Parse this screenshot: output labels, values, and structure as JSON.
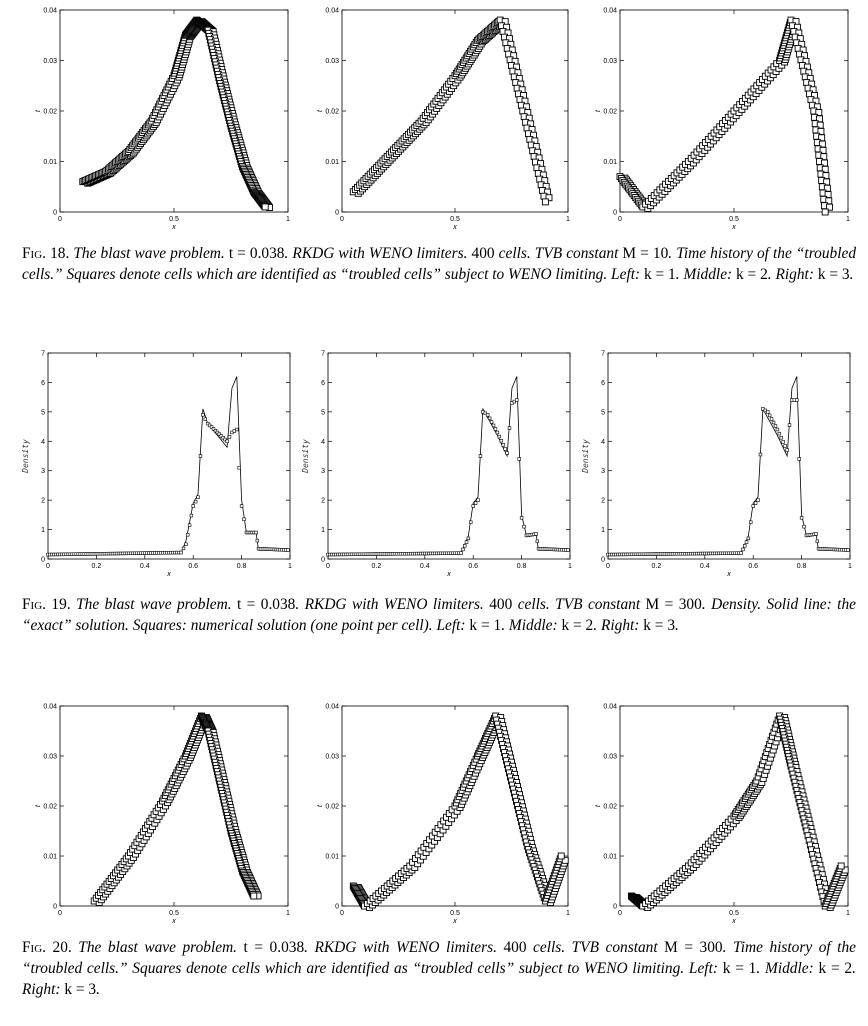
{
  "figures": [
    {
      "id": "fig18",
      "caption": {
        "number": "Fig. 18.",
        "segments": [
          {
            "t": "The blast wave problem. ",
            "i": true
          },
          {
            "t": "t = 0.038",
            "i": false
          },
          {
            "t": ". RKDG with WENO limiters. ",
            "i": true
          },
          {
            "t": "400",
            "i": false
          },
          {
            "t": " cells. TVB constant ",
            "i": true
          },
          {
            "t": "M = 10",
            "i": false
          },
          {
            "t": ". Time history of the “troubled cells.” Squares denote cells which are identified as “troubled cells” subject to WENO limiting. Left: ",
            "i": true
          },
          {
            "t": "k = 1",
            "i": false
          },
          {
            "t": ". Middle: ",
            "i": true
          },
          {
            "t": "k = 2",
            "i": false
          },
          {
            "t": ". Right: ",
            "i": true
          },
          {
            "t": "k = 3",
            "i": false
          },
          {
            "t": ".",
            "i": true
          }
        ]
      },
      "panels": [
        {
          "name": "k1",
          "chart_data": {
            "type": "scatter",
            "xlabel": "x",
            "ylabel": "t",
            "xlim": [
              0,
              1
            ],
            "ylim": [
              0,
              0.04
            ],
            "xticks": [
              "0",
              "0.5",
              "1"
            ],
            "yticks": [
              "0",
              "0.01",
              "0.02",
              "0.03",
              "0.04"
            ],
            "series": [
              {
                "x": [
                  0.1,
                  0.2,
                  0.3,
                  0.4,
                  0.5,
                  0.55,
                  0.6,
                  0.65,
                  0.7,
                  0.75,
                  0.8,
                  0.85,
                  0.9
                ],
                "y": [
                  0.006,
                  0.008,
                  0.012,
                  0.018,
                  0.027,
                  0.035,
                  0.038,
                  0.036,
                  0.026,
                  0.017,
                  0.009,
                  0.004,
                  0.001
                ]
              }
            ]
          }
        },
        {
          "name": "k2",
          "chart_data": {
            "type": "scatter",
            "xlabel": "x",
            "ylabel": "t",
            "xlim": [
              0,
              1
            ],
            "ylim": [
              0,
              0.04
            ],
            "xticks": [
              "0",
              "0.5",
              "1"
            ],
            "yticks": [
              "0",
              "0.01",
              "0.02",
              "0.03",
              "0.04"
            ],
            "series": [
              {
                "x": [
                  0.05,
                  0.2,
                  0.35,
                  0.5,
                  0.6,
                  0.7,
                  0.8,
                  0.9
                ],
                "y": [
                  0.004,
                  0.011,
                  0.018,
                  0.027,
                  0.034,
                  0.038,
                  0.02,
                  0.002
                ]
              }
            ]
          }
        },
        {
          "name": "k3",
          "chart_data": {
            "type": "scatter",
            "xlabel": "x",
            "ylabel": "t",
            "xlim": [
              0,
              1
            ],
            "ylim": [
              0,
              0.04
            ],
            "xticks": [
              "0",
              "0.5",
              "1"
            ],
            "yticks": [
              "0",
              "0.01",
              "0.02",
              "0.03",
              "0.04"
            ],
            "series": [
              {
                "x": [
                  0.0,
                  0.1,
                  0.3,
                  0.5,
                  0.7,
                  0.75,
                  0.85,
                  0.9
                ],
                "y": [
                  0.007,
                  0.001,
                  0.01,
                  0.02,
                  0.03,
                  0.038,
                  0.02,
                  0.0
                ]
              }
            ]
          }
        }
      ]
    },
    {
      "id": "fig19",
      "caption": {
        "number": "Fig. 19.",
        "segments": [
          {
            "t": "The blast wave problem. ",
            "i": true
          },
          {
            "t": "t = 0.038",
            "i": false
          },
          {
            "t": ". RKDG with WENO limiters. ",
            "i": true
          },
          {
            "t": "400",
            "i": false
          },
          {
            "t": " cells. TVB constant ",
            "i": true
          },
          {
            "t": "M = 300",
            "i": false
          },
          {
            "t": ". Density. Solid line: the “exact” solution. Squares: numerical solution (one point per cell). Left: ",
            "i": true
          },
          {
            "t": "k = 1",
            "i": false
          },
          {
            "t": ". Middle: ",
            "i": true
          },
          {
            "t": "k = 2",
            "i": false
          },
          {
            "t": ". Right: ",
            "i": true
          },
          {
            "t": "k = 3",
            "i": false
          },
          {
            "t": ".",
            "i": true
          }
        ]
      },
      "panels": [
        {
          "name": "k1",
          "chart_data": {
            "type": "line",
            "xlabel": "x",
            "ylabel": "Density",
            "xlim": [
              0,
              1
            ],
            "ylim": [
              0,
              7
            ],
            "xticks": [
              "0",
              "0.2",
              "0.4",
              "0.6",
              "0.8",
              "1"
            ],
            "yticks": [
              "0",
              "1",
              "2",
              "3",
              "4",
              "5",
              "6",
              "7"
            ],
            "series": [
              {
                "x": [
                  0,
                  0.55,
                  0.57,
                  0.6,
                  0.62,
                  0.64,
                  0.66,
                  0.7,
                  0.74,
                  0.76,
                  0.78,
                  0.8,
                  0.82,
                  0.86,
                  0.87,
                  1
                ],
                "y": [
                  0.15,
                  0.22,
                  0.6,
                  1.9,
                  2.2,
                  5.1,
                  4.6,
                  4.2,
                  3.8,
                  5.8,
                  6.2,
                  2.0,
                  0.9,
                  0.9,
                  0.3,
                  0.3
                ]
              },
              {
                "x": [
                  0,
                  0.55,
                  0.57,
                  0.6,
                  0.62,
                  0.64,
                  0.66,
                  0.7,
                  0.74,
                  0.76,
                  0.78,
                  0.8,
                  0.82,
                  0.86,
                  0.87,
                  1
                ],
                "y": [
                  0.15,
                  0.22,
                  0.5,
                  1.8,
                  2.1,
                  4.9,
                  4.6,
                  4.3,
                  4.0,
                  4.3,
                  4.4,
                  1.8,
                  0.9,
                  0.9,
                  0.35,
                  0.3
                ]
              }
            ]
          }
        },
        {
          "name": "k2",
          "chart_data": {
            "type": "line",
            "xlabel": "x",
            "ylabel": "Density",
            "xlim": [
              0,
              1
            ],
            "ylim": [
              0,
              7
            ],
            "xticks": [
              "0",
              "0.2",
              "0.4",
              "0.6",
              "0.8",
              "1"
            ],
            "yticks": [
              "0",
              "1",
              "2",
              "3",
              "4",
              "5",
              "6",
              "7"
            ],
            "series": [
              {
                "x": [
                  0,
                  0.55,
                  0.58,
                  0.6,
                  0.62,
                  0.64,
                  0.66,
                  0.7,
                  0.74,
                  0.76,
                  0.78,
                  0.8,
                  0.82,
                  0.86,
                  0.87,
                  1
                ],
                "y": [
                  0.15,
                  0.2,
                  0.8,
                  1.9,
                  2.1,
                  5.1,
                  4.8,
                  4.2,
                  3.5,
                  5.8,
                  6.2,
                  1.5,
                  0.8,
                  0.85,
                  0.3,
                  0.3
                ]
              },
              {
                "x": [
                  0,
                  0.55,
                  0.58,
                  0.6,
                  0.62,
                  0.64,
                  0.66,
                  0.7,
                  0.74,
                  0.76,
                  0.78,
                  0.8,
                  0.82,
                  0.86,
                  0.87,
                  1
                ],
                "y": [
                  0.15,
                  0.2,
                  0.7,
                  1.8,
                  2.0,
                  5.0,
                  4.9,
                  4.3,
                  3.6,
                  5.3,
                  5.4,
                  1.4,
                  0.8,
                  0.85,
                  0.35,
                  0.3
                ]
              }
            ]
          }
        },
        {
          "name": "k3",
          "chart_data": {
            "type": "line",
            "xlabel": "x",
            "ylabel": "Density",
            "xlim": [
              0,
              1
            ],
            "ylim": [
              0,
              7
            ],
            "xticks": [
              "0",
              "0.2",
              "0.4",
              "0.6",
              "0.8",
              "1"
            ],
            "yticks": [
              "0",
              "1",
              "2",
              "3",
              "4",
              "5",
              "6",
              "7"
            ],
            "series": [
              {
                "x": [
                  0,
                  0.55,
                  0.58,
                  0.6,
                  0.62,
                  0.64,
                  0.66,
                  0.7,
                  0.74,
                  0.76,
                  0.78,
                  0.8,
                  0.82,
                  0.86,
                  0.87,
                  1
                ],
                "y": [
                  0.15,
                  0.2,
                  0.8,
                  1.9,
                  2.1,
                  5.1,
                  4.8,
                  4.2,
                  3.5,
                  5.8,
                  6.2,
                  1.5,
                  0.8,
                  0.85,
                  0.3,
                  0.3
                ]
              },
              {
                "x": [
                  0,
                  0.55,
                  0.58,
                  0.6,
                  0.62,
                  0.64,
                  0.66,
                  0.7,
                  0.74,
                  0.76,
                  0.78,
                  0.8,
                  0.82,
                  0.86,
                  0.87,
                  1
                ],
                "y": [
                  0.15,
                  0.2,
                  0.7,
                  1.8,
                  2.0,
                  5.1,
                  5.0,
                  4.4,
                  3.7,
                  5.4,
                  5.4,
                  1.4,
                  0.8,
                  0.85,
                  0.35,
                  0.3
                ]
              }
            ]
          }
        }
      ]
    },
    {
      "id": "fig20",
      "caption": {
        "number": "Fig. 20.",
        "segments": [
          {
            "t": "The blast wave problem. ",
            "i": true
          },
          {
            "t": "t = 0.038",
            "i": false
          },
          {
            "t": ". RKDG with WENO limiters. ",
            "i": true
          },
          {
            "t": "400",
            "i": false
          },
          {
            "t": " cells. TVB constant ",
            "i": true
          },
          {
            "t": "M = 300",
            "i": false
          },
          {
            "t": ". Time history of the “troubled cells.” Squares denote cells which are identified as “troubled cells” subject to WENO limiting. Left: ",
            "i": true
          },
          {
            "t": "k = 1",
            "i": false
          },
          {
            "t": ". Middle: ",
            "i": true
          },
          {
            "t": "k = 2",
            "i": false
          },
          {
            "t": ". Right: ",
            "i": true
          },
          {
            "t": "k = 3",
            "i": false
          },
          {
            "t": ".",
            "i": true
          }
        ]
      },
      "panels": [
        {
          "name": "k1",
          "chart_data": {
            "type": "scatter",
            "xlabel": "x",
            "ylabel": "t",
            "xlim": [
              0,
              1
            ],
            "ylim": [
              0,
              0.04
            ],
            "xticks": [
              "0",
              "0.5",
              "1"
            ],
            "yticks": [
              "0",
              "0.01",
              "0.02",
              "0.03",
              "0.04"
            ],
            "series": [
              {
                "x": [
                  0.15,
                  0.3,
                  0.45,
                  0.55,
                  0.62,
                  0.65,
                  0.7,
                  0.75,
                  0.8,
                  0.85
                ],
                "y": [
                  0.001,
                  0.01,
                  0.021,
                  0.03,
                  0.038,
                  0.035,
                  0.025,
                  0.015,
                  0.007,
                  0.002
                ]
              }
            ]
          }
        },
        {
          "name": "k2",
          "chart_data": {
            "type": "scatter",
            "xlabel": "x",
            "ylabel": "t",
            "xlim": [
              0,
              1
            ],
            "ylim": [
              0,
              0.04
            ],
            "xticks": [
              "0",
              "0.5",
              "1"
            ],
            "yticks": [
              "0",
              "0.01",
              "0.02",
              "0.03",
              "0.04"
            ],
            "series": [
              {
                "x": [
                  0.05,
                  0.1,
                  0.3,
                  0.5,
                  0.6,
                  0.68,
                  0.75,
                  0.82,
                  0.9,
                  0.97
                ],
                "y": [
                  0.004,
                  0.0,
                  0.008,
                  0.02,
                  0.03,
                  0.038,
                  0.025,
                  0.012,
                  0.001,
                  0.01
                ]
              }
            ]
          }
        },
        {
          "name": "k3",
          "chart_data": {
            "type": "scatter",
            "xlabel": "x",
            "ylabel": "t",
            "xlim": [
              0,
              1
            ],
            "ylim": [
              0,
              0.04
            ],
            "xticks": [
              "0",
              "0.5",
              "1"
            ],
            "yticks": [
              "0",
              "0.01",
              "0.02",
              "0.03",
              "0.04"
            ],
            "series": [
              {
                "x": [
                  0.05,
                  0.1,
                  0.3,
                  0.5,
                  0.6,
                  0.7,
                  0.75,
                  0.82,
                  0.9,
                  0.97
                ],
                "y": [
                  0.002,
                  0.0,
                  0.008,
                  0.018,
                  0.025,
                  0.038,
                  0.028,
                  0.015,
                  0.0,
                  0.008
                ]
              }
            ]
          }
        }
      ]
    }
  ]
}
